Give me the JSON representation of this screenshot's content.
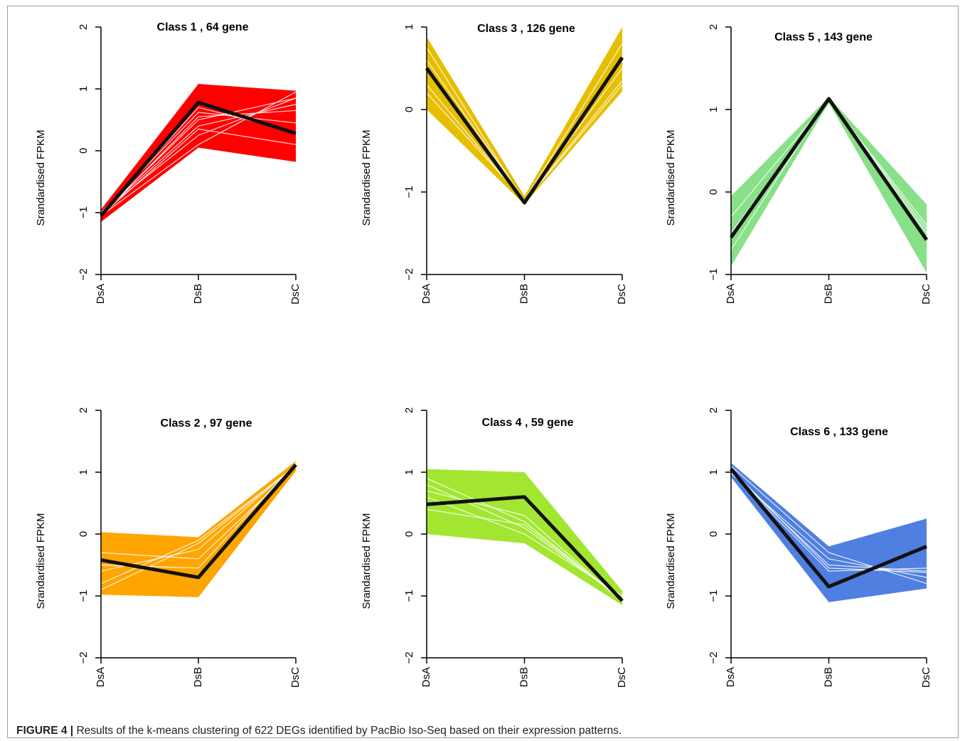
{
  "caption": {
    "label": "FIGURE 4 |",
    "text": " Results of the k-means clustering of 622 DEGs identified by PacBio Iso-Seq based on their expression patterns."
  },
  "chart_data": [
    {
      "type": "line",
      "title": "Class  1  , 64 gene",
      "ylabel": "Srandardised FPKM",
      "categories": [
        "DsA",
        "DsB",
        "DsC"
      ],
      "yticks": [
        -2,
        -1,
        0,
        1,
        2
      ],
      "ylim": [
        -2,
        2
      ],
      "color": "#ff0000",
      "band": {
        "lower": [
          -1.15,
          0.05,
          -0.18
        ],
        "upper": [
          -0.95,
          1.08,
          0.97
        ]
      },
      "white_lines": [
        [
          -1.05,
          0.1,
          0.95
        ],
        [
          -1.0,
          0.25,
          0.85
        ],
        [
          -1.02,
          0.4,
          0.75
        ],
        [
          -1.05,
          0.55,
          0.65
        ],
        [
          -1.0,
          0.62,
          0.45
        ],
        [
          -1.03,
          0.7,
          0.3
        ],
        [
          -1.05,
          0.35,
          0.1
        ],
        [
          -1.02,
          0.5,
          0.85
        ]
      ],
      "series": [
        {
          "values": [
            -1.05,
            0.78,
            0.28
          ]
        }
      ]
    },
    {
      "type": "line",
      "title": "Class  3  , 126 gene",
      "ylabel": "Srandardised FPKM",
      "categories": [
        "DsA",
        "DsB",
        "DsC"
      ],
      "yticks": [
        -2,
        -1,
        0,
        1
      ],
      "ylim": [
        -2,
        1
      ],
      "color": "#e6be00",
      "band": {
        "lower": [
          0.0,
          -1.15,
          0.22
        ],
        "upper": [
          0.88,
          -1.05,
          1.0
        ]
      },
      "white_lines": [
        [
          0.3,
          -1.12,
          0.35
        ],
        [
          0.6,
          -1.1,
          0.5
        ],
        [
          0.2,
          -1.1,
          0.8
        ],
        [
          0.75,
          -1.12,
          0.3
        ]
      ],
      "series": [
        {
          "values": [
            0.5,
            -1.13,
            0.63
          ]
        }
      ]
    },
    {
      "type": "line",
      "title": "Class  5  , 143 gene",
      "ylabel": "Srandardised FPKM",
      "categories": [
        "DsA",
        "DsB",
        "DsC"
      ],
      "yticks": [
        -1,
        0,
        1,
        2
      ],
      "ylim": [
        -1,
        2
      ],
      "color": "#88e088",
      "band": {
        "lower": [
          -0.9,
          1.08,
          -0.98
        ],
        "upper": [
          -0.05,
          1.15,
          -0.15
        ]
      },
      "white_lines": [
        [
          -0.5,
          1.12,
          -0.4
        ],
        [
          -0.3,
          1.12,
          -0.45
        ],
        [
          -0.7,
          1.13,
          -0.5
        ]
      ],
      "series": [
        {
          "values": [
            -0.55,
            1.13,
            -0.58
          ]
        }
      ]
    },
    {
      "type": "line",
      "title": "Class  2  , 97 gene",
      "ylabel": "Srandardised FPKM",
      "categories": [
        "DsA",
        "DsB",
        "DsC"
      ],
      "yticks": [
        -2,
        -1,
        0,
        1,
        2
      ],
      "ylim": [
        -2,
        2
      ],
      "color": "#ffa500",
      "band": {
        "lower": [
          -0.98,
          -1.02,
          1.02
        ],
        "upper": [
          0.03,
          -0.05,
          1.18
        ]
      },
      "white_lines": [
        [
          -0.8,
          -0.1,
          1.1
        ],
        [
          -0.6,
          -0.25,
          1.12
        ],
        [
          -0.3,
          -0.4,
          1.08
        ],
        [
          -0.9,
          -0.15,
          1.1
        ],
        [
          -0.5,
          -0.55,
          1.15
        ]
      ],
      "series": [
        {
          "values": [
            -0.42,
            -0.7,
            1.12
          ]
        }
      ]
    },
    {
      "type": "line",
      "title": "Class  4  , 59 gene",
      "ylabel": "Srandardised FPKM",
      "categories": [
        "DsA",
        "DsB",
        "DsC"
      ],
      "yticks": [
        -2,
        -1,
        0,
        1,
        2
      ],
      "ylim": [
        -2,
        2
      ],
      "color": "#a3e632",
      "band": {
        "lower": [
          0.0,
          -0.15,
          -1.15
        ],
        "upper": [
          1.05,
          1.0,
          -0.92
        ]
      },
      "white_lines": [
        [
          0.8,
          0.1,
          -1.05
        ],
        [
          0.9,
          0.2,
          -1.08
        ],
        [
          0.7,
          0.3,
          -1.1
        ],
        [
          0.6,
          0.0,
          -1.0
        ],
        [
          0.4,
          0.15,
          -1.05
        ]
      ],
      "series": [
        {
          "values": [
            0.48,
            0.6,
            -1.08
          ]
        }
      ]
    },
    {
      "type": "line",
      "title": "Class  6  , 133 gene",
      "ylabel": "Srandardised FPKM",
      "categories": [
        "DsA",
        "DsB",
        "DsC"
      ],
      "yticks": [
        -2,
        -1,
        0,
        1,
        2
      ],
      "ylim": [
        -2,
        2
      ],
      "color": "#4f7fe0",
      "band": {
        "lower": [
          0.92,
          -1.1,
          -0.88
        ],
        "upper": [
          1.15,
          -0.2,
          0.25
        ]
      },
      "white_lines": [
        [
          1.0,
          -0.5,
          -0.6
        ],
        [
          1.05,
          -0.55,
          -0.62
        ],
        [
          1.1,
          -0.3,
          -0.8
        ],
        [
          0.98,
          -0.4,
          -0.7
        ],
        [
          1.0,
          -0.6,
          -0.55
        ]
      ],
      "series": [
        {
          "values": [
            1.05,
            -0.85,
            -0.2
          ]
        }
      ]
    }
  ]
}
